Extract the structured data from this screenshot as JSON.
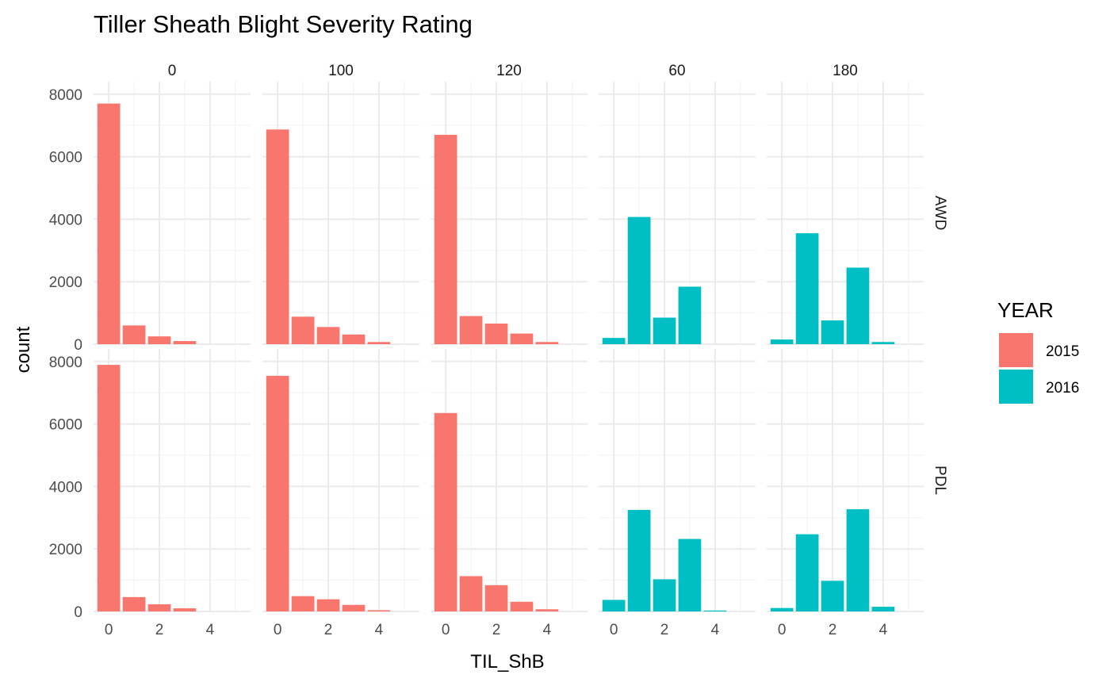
{
  "chart_data": {
    "type": "bar",
    "title": "Tiller Sheath Blight Severity Rating",
    "xlabel": "TIL_ShB",
    "ylabel": "count",
    "x_ticks": [
      0,
      2,
      4
    ],
    "xlim": [
      -0.6,
      5.6
    ],
    "y_ticks": [
      0,
      2000,
      4000,
      6000,
      8000
    ],
    "ylim": [
      0,
      8400
    ],
    "grid": true,
    "columns": [
      "0",
      "100",
      "120",
      "60",
      "180"
    ],
    "rows": [
      "AWD",
      "PDL"
    ],
    "legend": {
      "title": "YEAR",
      "placement": "right",
      "entries": [
        {
          "label": "2015",
          "color": "#F8766D"
        },
        {
          "label": "2016",
          "color": "#00BFC4"
        }
      ]
    },
    "panels": [
      {
        "column": "0",
        "row": "AWD",
        "year": "2015",
        "x": [
          0,
          1,
          2,
          3
        ],
        "values": [
          7700,
          600,
          250,
          100
        ]
      },
      {
        "column": "100",
        "row": "AWD",
        "year": "2015",
        "x": [
          0,
          1,
          2,
          3,
          4
        ],
        "values": [
          6870,
          880,
          550,
          310,
          70
        ]
      },
      {
        "column": "120",
        "row": "AWD",
        "year": "2015",
        "x": [
          0,
          1,
          2,
          3,
          4
        ],
        "values": [
          6700,
          900,
          660,
          340,
          70
        ]
      },
      {
        "column": "60",
        "row": "AWD",
        "year": "2016",
        "x": [
          0,
          1,
          2,
          3
        ],
        "values": [
          200,
          4070,
          850,
          1840
        ]
      },
      {
        "column": "180",
        "row": "AWD",
        "year": "2016",
        "x": [
          0,
          1,
          2,
          3,
          4
        ],
        "values": [
          150,
          3550,
          760,
          2450,
          70
        ]
      },
      {
        "column": "0",
        "row": "PDL",
        "year": "2015",
        "x": [
          0,
          1,
          2,
          3
        ],
        "values": [
          7890,
          460,
          230,
          100
        ]
      },
      {
        "column": "100",
        "row": "PDL",
        "year": "2015",
        "x": [
          0,
          1,
          2,
          3,
          4
        ],
        "values": [
          7540,
          490,
          390,
          210,
          40
        ]
      },
      {
        "column": "120",
        "row": "PDL",
        "year": "2015",
        "x": [
          0,
          1,
          2,
          3,
          4
        ],
        "values": [
          6350,
          1130,
          840,
          310,
          70
        ]
      },
      {
        "column": "60",
        "row": "PDL",
        "year": "2016",
        "x": [
          0,
          1,
          2,
          3,
          4
        ],
        "values": [
          370,
          3250,
          1030,
          2320,
          30
        ]
      },
      {
        "column": "180",
        "row": "PDL",
        "year": "2016",
        "x": [
          0,
          1,
          2,
          3,
          4
        ],
        "values": [
          110,
          2470,
          980,
          3270,
          150
        ]
      }
    ]
  }
}
